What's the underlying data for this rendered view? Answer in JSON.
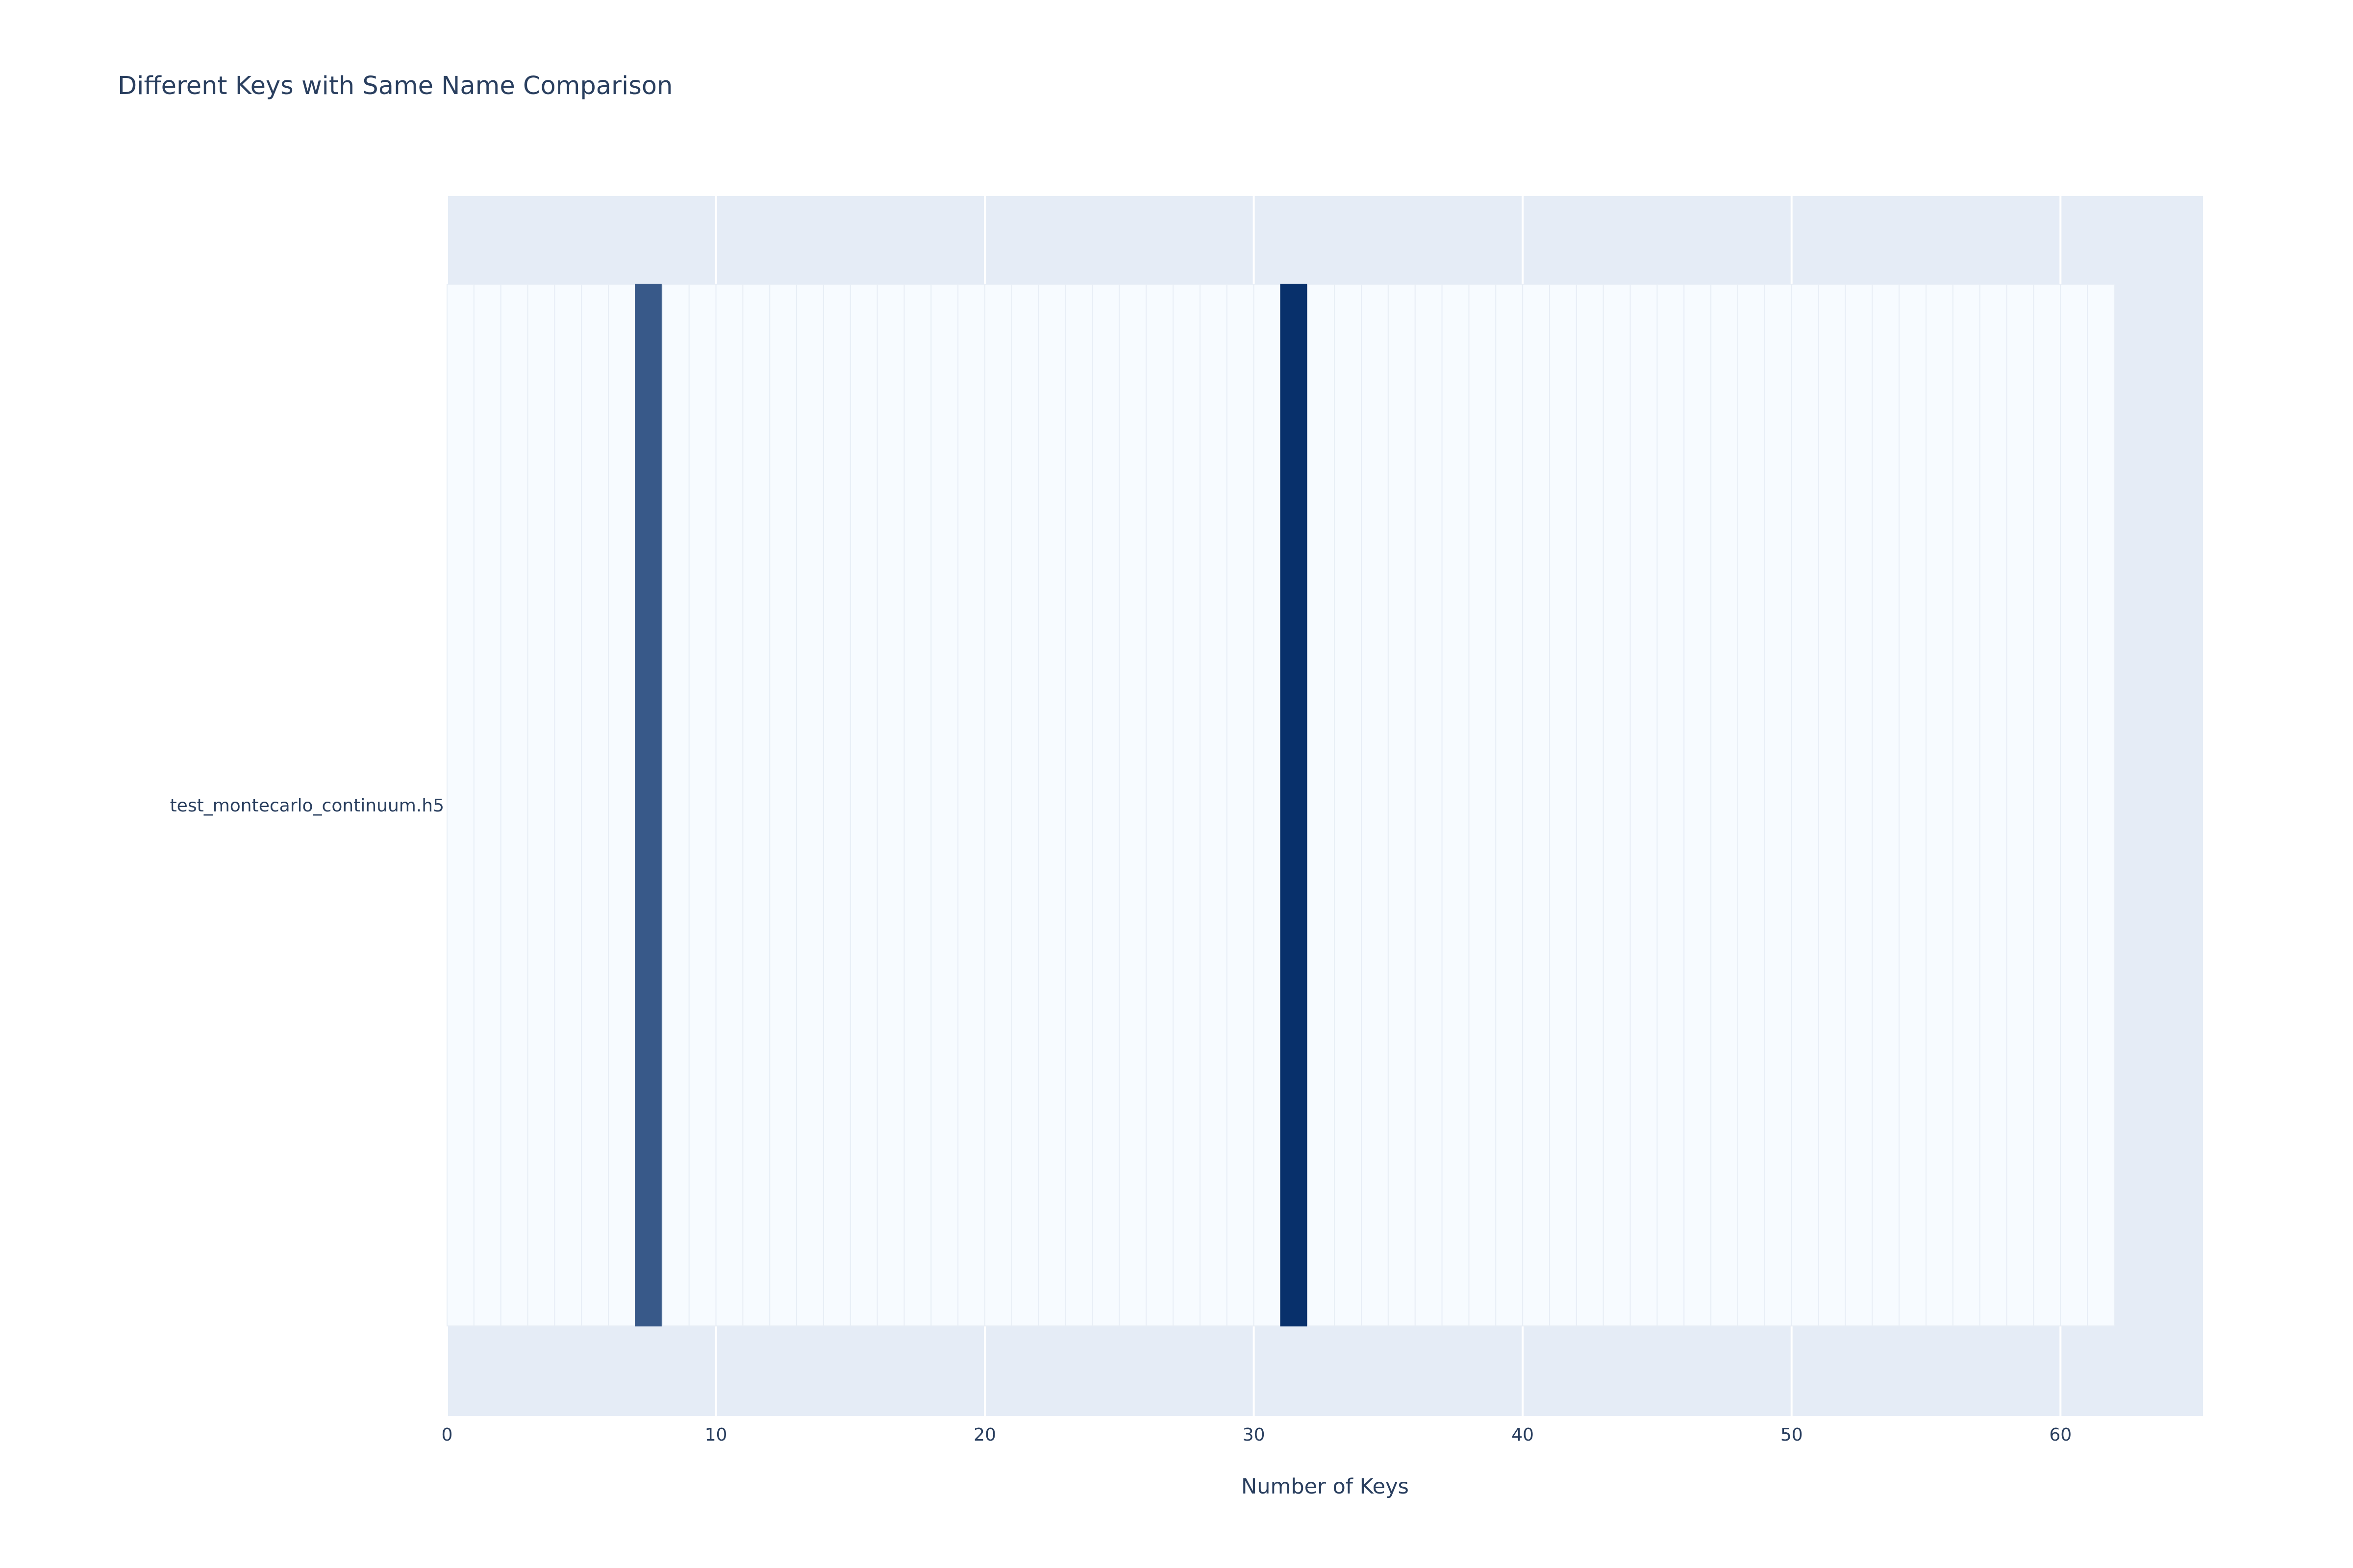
{
  "chart_data": {
    "type": "heatmap",
    "title": "Different Keys with Same Name Comparison",
    "xlabel": "Number of Keys",
    "ylabel": "",
    "y_categories": [
      "test_montecarlo_continuum.h5"
    ],
    "x_range": [
      0,
      65.3
    ],
    "x_ticks": [
      0,
      10,
      20,
      30,
      40,
      50,
      60
    ],
    "cells": {
      "x_start": 0,
      "count": 62,
      "values": [
        0,
        0,
        0,
        0,
        0,
        0,
        0,
        0.8,
        0,
        0,
        0,
        0,
        0,
        0,
        0,
        0,
        0,
        0,
        0,
        0,
        0,
        0,
        0,
        0,
        0,
        0,
        0,
        0,
        0,
        0,
        0,
        1,
        0,
        0,
        0,
        0,
        0,
        0,
        0,
        0,
        0,
        0,
        0,
        0,
        0,
        0,
        0,
        0,
        0,
        0,
        0,
        0,
        0,
        0,
        0,
        0,
        0,
        0,
        0,
        0,
        0,
        0
      ]
    },
    "colorscale": [
      "#f7fbff",
      "#08306b"
    ],
    "grid": true,
    "legend": "none"
  },
  "colors": {
    "plot_background": "#e5ecf6",
    "gridline": "#ffffff",
    "text": "#2a3f5f",
    "cell_separator": "#e8eef6"
  }
}
